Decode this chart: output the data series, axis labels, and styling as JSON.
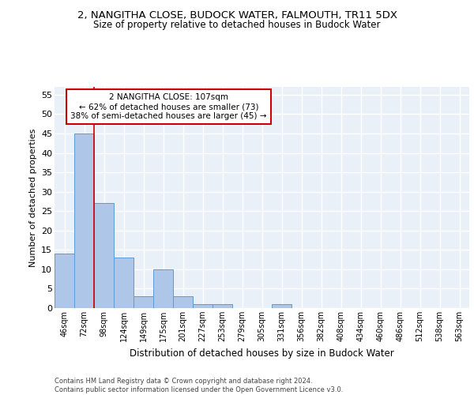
{
  "title": "2, NANGITHA CLOSE, BUDOCK WATER, FALMOUTH, TR11 5DX",
  "subtitle": "Size of property relative to detached houses in Budock Water",
  "xlabel": "Distribution of detached houses by size in Budock Water",
  "ylabel": "Number of detached properties",
  "bar_labels": [
    "46sqm",
    "72sqm",
    "98sqm",
    "124sqm",
    "149sqm",
    "175sqm",
    "201sqm",
    "227sqm",
    "253sqm",
    "279sqm",
    "305sqm",
    "331sqm",
    "356sqm",
    "382sqm",
    "408sqm",
    "434sqm",
    "460sqm",
    "486sqm",
    "512sqm",
    "538sqm",
    "563sqm"
  ],
  "bar_values": [
    14,
    45,
    27,
    13,
    3,
    10,
    3,
    1,
    1,
    0,
    0,
    1,
    0,
    0,
    0,
    0,
    0,
    0,
    0,
    0,
    0
  ],
  "bar_color": "#aec6e8",
  "bar_edge_color": "#5b9bd5",
  "vline_x_idx": 2,
  "vline_color": "#cc0000",
  "annotation_text": "2 NANGITHA CLOSE: 107sqm\n← 62% of detached houses are smaller (73)\n38% of semi-detached houses are larger (45) →",
  "annotation_box_color": "#ffffff",
  "annotation_box_edge": "#cc0000",
  "ylim": [
    0,
    57
  ],
  "yticks": [
    0,
    5,
    10,
    15,
    20,
    25,
    30,
    35,
    40,
    45,
    50,
    55
  ],
  "bg_color": "#eaf0f8",
  "grid_color": "#ffffff",
  "footer": "Contains HM Land Registry data © Crown copyright and database right 2024.\nContains public sector information licensed under the Open Government Licence v3.0."
}
